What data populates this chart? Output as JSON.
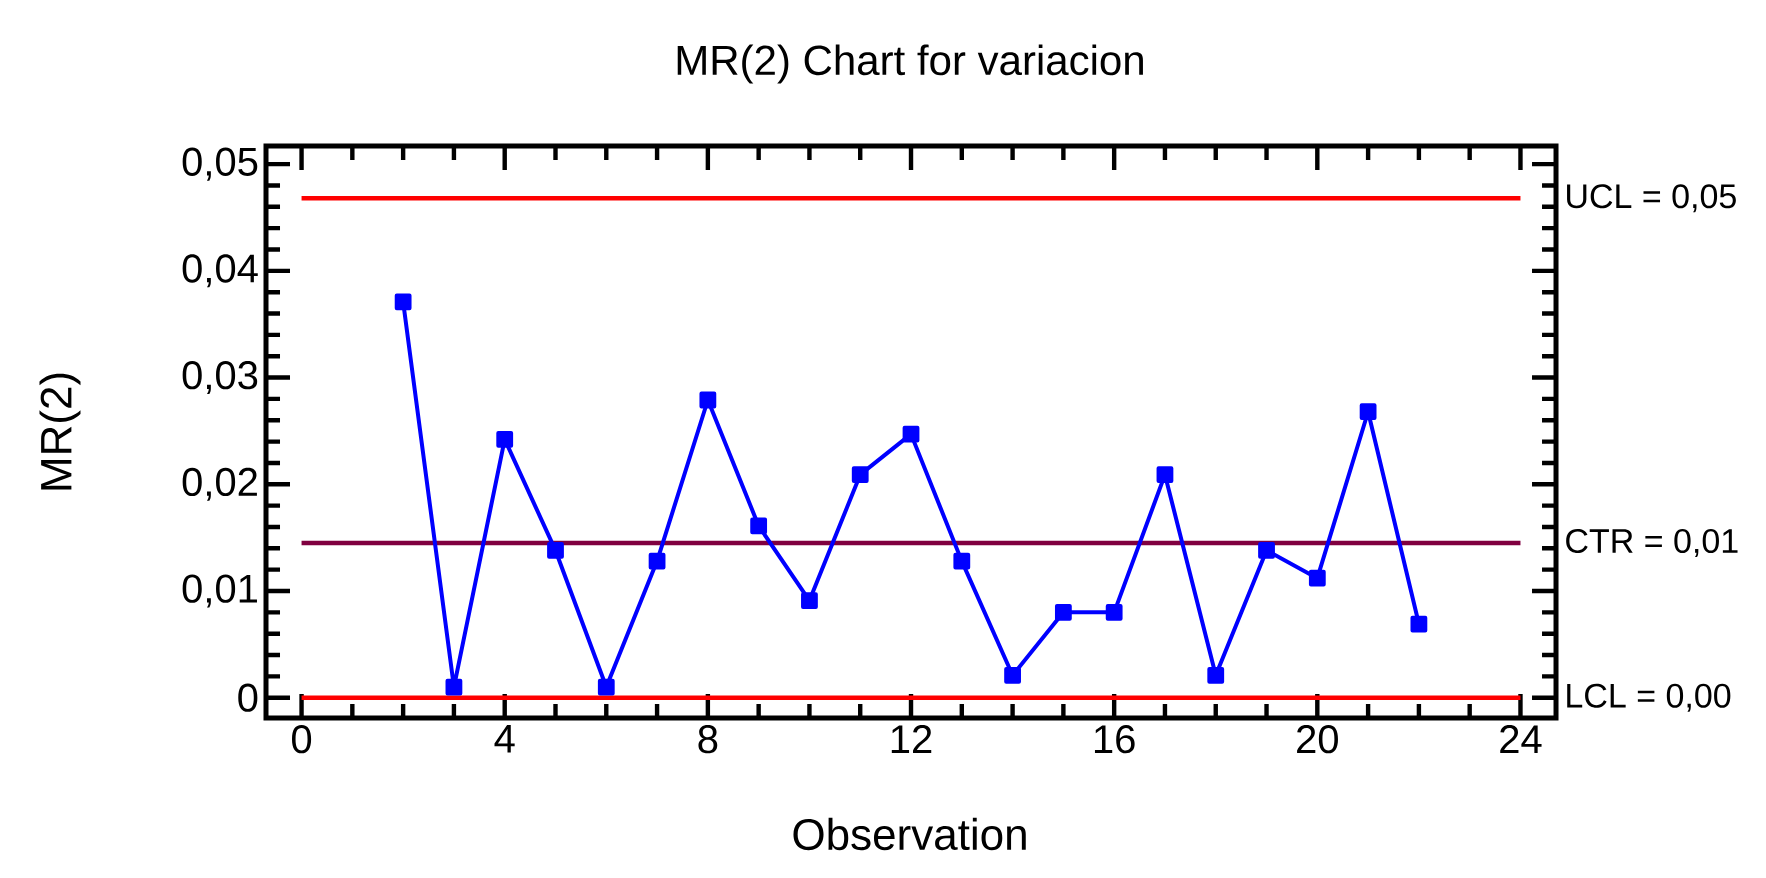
{
  "chart_data": {
    "type": "line",
    "title": "MR(2) Chart for variacion",
    "xlabel": "Observation",
    "ylabel": "MR(2)",
    "x": [
      2,
      3,
      4,
      5,
      6,
      7,
      8,
      9,
      10,
      11,
      12,
      13,
      14,
      15,
      16,
      17,
      18,
      19,
      20,
      21,
      22
    ],
    "series": [
      {
        "color": "#0000ff",
        "values": [
          0.0371,
          0.001,
          0.0242,
          0.0138,
          0.001,
          0.0128,
          0.0279,
          0.0161,
          0.0091,
          0.0209,
          0.0247,
          0.0128,
          0.0021,
          0.008,
          0.008,
          0.0209,
          0.0021,
          0.0138,
          0.0112,
          0.0268,
          0.0069
        ]
      }
    ],
    "marker": "square",
    "line_style": "solid",
    "grid": false,
    "xlim": [
      -0.7,
      24.7
    ],
    "ylim": [
      -0.0019,
      0.0517
    ],
    "xticks": [
      0,
      4,
      8,
      12,
      16,
      20,
      24
    ],
    "yticks": [
      0,
      {
        "value": 0.01,
        "label": "0,01"
      },
      {
        "value": 0.02,
        "label": "0,02"
      },
      {
        "value": 0.03,
        "label": "0,03"
      },
      {
        "value": 0.04,
        "label": "0,04"
      },
      {
        "value": 0.05,
        "label": "0,05"
      }
    ],
    "ref_lines": [
      {
        "axis": "y",
        "value": 0.0468,
        "label": "UCL = 0,05",
        "color": "#ff0000"
      },
      {
        "axis": "y",
        "value": 0.0145,
        "label": "CTR = 0,01",
        "color": "#800040"
      },
      {
        "axis": "y",
        "value": 0.0,
        "label": "LCL = 0,00",
        "color": "#ff0000"
      }
    ]
  }
}
